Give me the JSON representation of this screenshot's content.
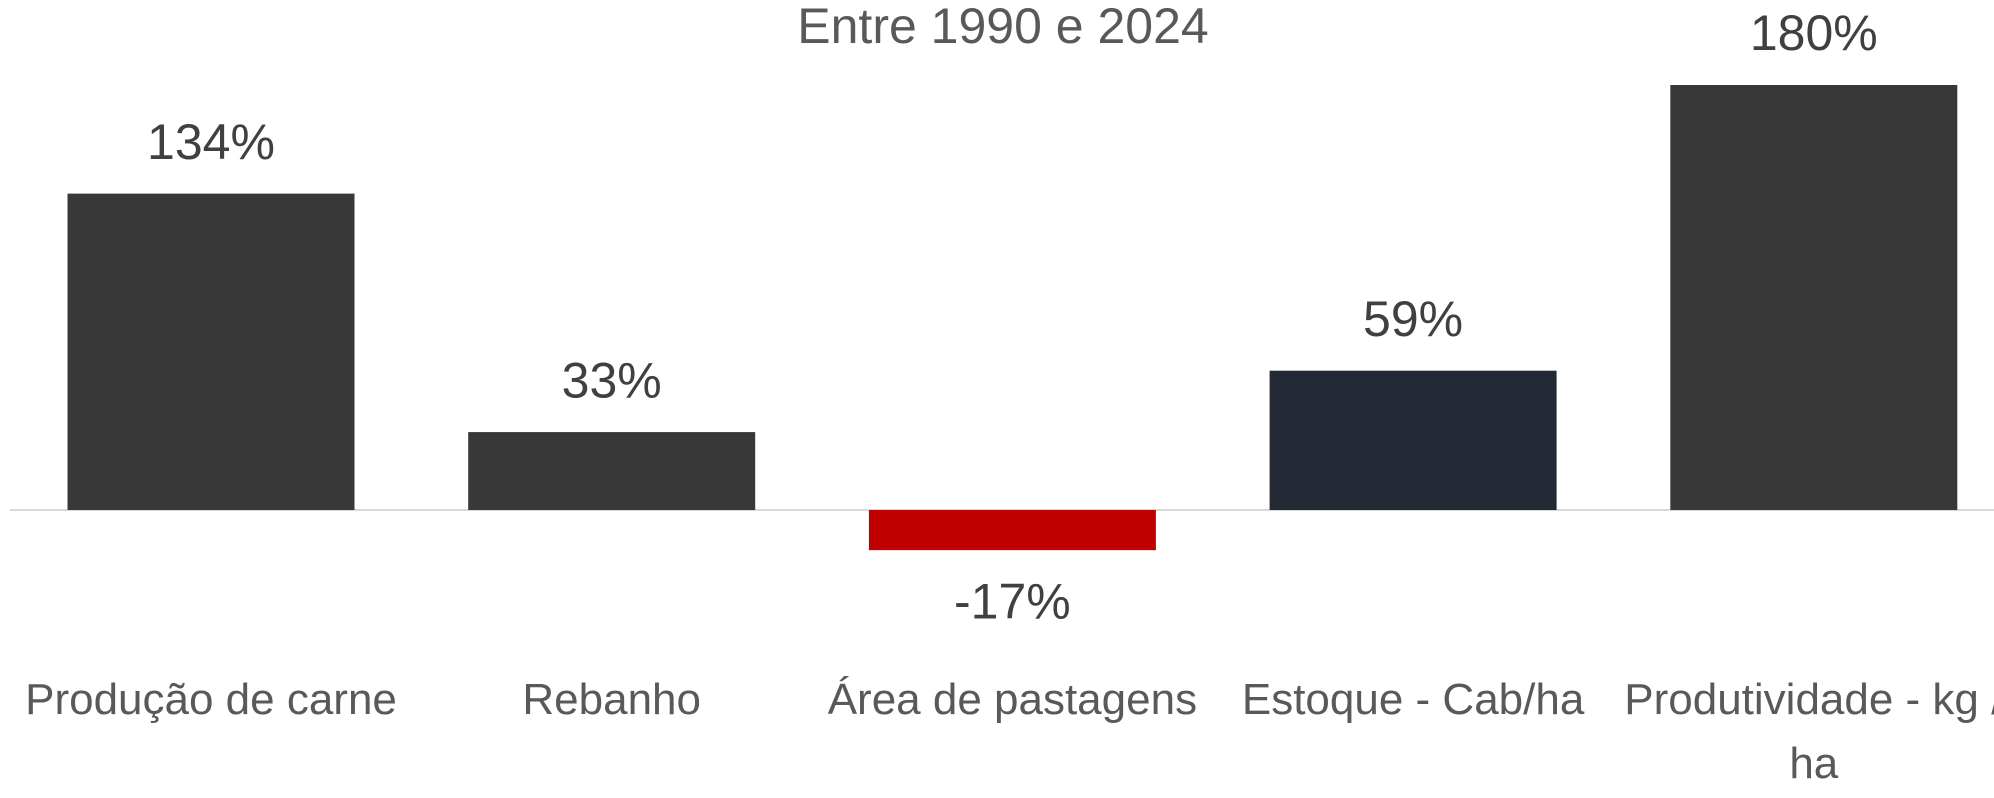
{
  "chart_data": {
    "type": "bar",
    "title": "Entre 1990 e 2024",
    "categories": [
      "Produção de carne",
      "Rebanho",
      "Área de pastagens",
      "Estoque - Cab/ha",
      "Produtividade - kg / ha"
    ],
    "values": [
      134,
      33,
      -17,
      59,
      180
    ],
    "value_labels": [
      "134%",
      "33%",
      "-17%",
      "59%",
      "180%"
    ],
    "colors": [
      "#383838",
      "#383838",
      "#c00000",
      "#232a36",
      "#383838"
    ]
  }
}
